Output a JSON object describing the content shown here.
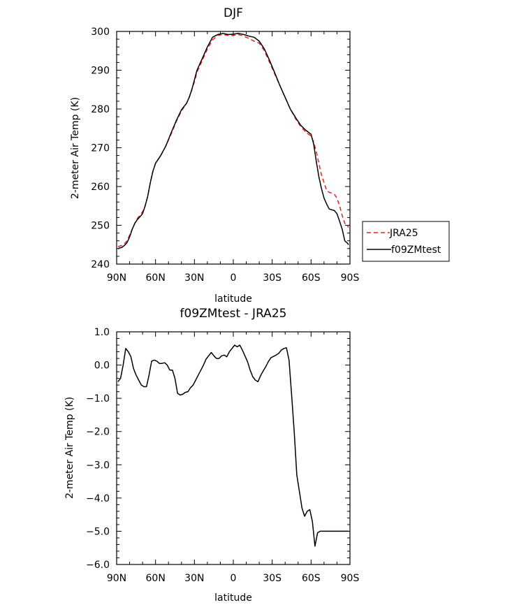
{
  "chart_data": [
    {
      "type": "line",
      "title": "DJF",
      "xlabel": "latitude",
      "ylabel": "2-meter Air Temp (K)",
      "ylim": [
        240,
        300
      ],
      "xlim": [
        90,
        -90
      ],
      "x_ticks": [
        90,
        60,
        30,
        0,
        -30,
        -60,
        -90
      ],
      "x_tick_labels": [
        "90N",
        "60N",
        "30N",
        "0",
        "30S",
        "60S",
        "90S"
      ],
      "y_ticks": [
        240,
        250,
        260,
        270,
        280,
        290,
        300
      ],
      "y_tick_labels": [
        "240",
        "250",
        "260",
        "270",
        "280",
        "290",
        "300"
      ],
      "legend_position": "right",
      "series": [
        {
          "name": "JRA25",
          "color": "#e8211d",
          "dash": "dashed",
          "x": [
            89,
            86,
            84,
            82,
            80,
            78,
            76,
            74,
            72,
            70,
            68,
            66,
            64,
            62,
            60,
            56,
            52,
            48,
            44,
            40,
            36,
            34,
            32,
            30,
            28,
            24,
            20,
            16,
            12,
            8,
            4,
            0,
            -4,
            -8,
            -12,
            -16,
            -20,
            -24,
            -28,
            -32,
            -36,
            -40,
            -44,
            -48,
            -52,
            -56,
            -60,
            -62,
            -64,
            -66,
            -68,
            -70,
            -72,
            -74,
            -76,
            -78,
            -80,
            -82,
            -84,
            -86,
            -88,
            -89
          ],
          "values": [
            244.5,
            244.8,
            245.2,
            246.0,
            247.5,
            249.0,
            250.5,
            251.8,
            252.6,
            253.5,
            255.0,
            257.5,
            261.0,
            264.0,
            266.0,
            268.0,
            270.5,
            273.5,
            276.8,
            279.5,
            281.5,
            283.0,
            285.0,
            287.0,
            289.5,
            292.5,
            295.5,
            297.8,
            299.0,
            299.2,
            299.0,
            299.0,
            299.2,
            298.8,
            298.2,
            297.5,
            297.0,
            295.0,
            292.0,
            289.0,
            286.0,
            283.0,
            280.0,
            277.5,
            275.5,
            274.0,
            273.0,
            271.5,
            269.0,
            266.0,
            263.0,
            261.0,
            259.0,
            258.5,
            258.3,
            258.0,
            257.0,
            255.0,
            252.5,
            250.5,
            249.8,
            249.5
          ]
        },
        {
          "name": "f09ZMtest",
          "color": "#000000",
          "dash": "solid",
          "x": [
            89,
            86,
            84,
            82,
            80,
            78,
            76,
            74,
            72,
            70,
            68,
            66,
            64,
            62,
            60,
            56,
            52,
            48,
            44,
            40,
            36,
            34,
            32,
            30,
            28,
            24,
            20,
            16,
            12,
            8,
            4,
            0,
            -4,
            -8,
            -12,
            -16,
            -20,
            -24,
            -28,
            -32,
            -36,
            -40,
            -44,
            -48,
            -52,
            -56,
            -60,
            -62,
            -64,
            -66,
            -68,
            -70,
            -72,
            -74,
            -76,
            -78,
            -80,
            -82,
            -84,
            -86,
            -88,
            -89
          ],
          "values": [
            244.0,
            244.3,
            244.8,
            245.5,
            247.0,
            249.0,
            250.5,
            251.5,
            252.2,
            253.0,
            255.0,
            257.5,
            261.0,
            264.0,
            266.0,
            268.0,
            270.5,
            273.8,
            277.0,
            279.8,
            281.5,
            283.0,
            285.0,
            287.5,
            290.0,
            293.0,
            296.0,
            298.5,
            299.2,
            299.5,
            299.2,
            299.3,
            299.5,
            299.2,
            298.8,
            298.5,
            297.5,
            295.5,
            292.5,
            289.3,
            286.0,
            283.0,
            280.0,
            277.8,
            275.8,
            274.5,
            273.5,
            271.0,
            266.5,
            262.5,
            259.5,
            257.0,
            255.5,
            254.2,
            254.0,
            253.8,
            253.0,
            251.0,
            249.0,
            246.0,
            245.4,
            245.0
          ]
        }
      ]
    },
    {
      "type": "line",
      "title": "f09ZMtest - JRA25",
      "xlabel": "latitude",
      "ylabel": "2-meter Air Temp (K)",
      "ylim": [
        -6,
        1
      ],
      "xlim": [
        90,
        -90
      ],
      "x_ticks": [
        90,
        60,
        30,
        0,
        -30,
        -60,
        -90
      ],
      "x_tick_labels": [
        "90N",
        "60N",
        "30N",
        "0",
        "30S",
        "60S",
        "90S"
      ],
      "y_ticks": [
        1,
        0,
        -1,
        -2,
        -3,
        -4,
        -5,
        -6
      ],
      "y_tick_labels": [
        "1.0",
        "0.0",
        "-1.0",
        "-2.0",
        "-3.0",
        "-4.0",
        "-5.0",
        "-6.0"
      ],
      "series": [
        {
          "name": "f09ZMtest - JRA25",
          "color": "#000000",
          "dash": "solid",
          "x": [
            89,
            87,
            85,
            83,
            81,
            79,
            77,
            75,
            73,
            71,
            69,
            67,
            65,
            63,
            61,
            59,
            57,
            55,
            53,
            51,
            49,
            47,
            45,
            43,
            41,
            39,
            37,
            35,
            33,
            31,
            29,
            27,
            25,
            23,
            21,
            19,
            17,
            15,
            13,
            11,
            9,
            7,
            5,
            3,
            1,
            -1,
            -3,
            -5,
            -7,
            -9,
            -11,
            -13,
            -15,
            -17,
            -19,
            -21,
            -23,
            -25,
            -27,
            -29,
            -31,
            -33,
            -35,
            -37,
            -39,
            -41,
            -43,
            -45,
            -47,
            -49,
            -51,
            -53,
            -55,
            -57,
            -59,
            -61,
            -63,
            -65,
            -67,
            -69,
            -71,
            -73,
            -75,
            -77,
            -79,
            -81,
            -83,
            -85,
            -87,
            -89
          ],
          "values": [
            -0.5,
            -0.4,
            0.0,
            0.5,
            0.4,
            0.25,
            -0.1,
            -0.3,
            -0.45,
            -0.6,
            -0.65,
            -0.65,
            -0.3,
            0.12,
            0.15,
            0.12,
            0.05,
            0.05,
            0.07,
            0.0,
            -0.15,
            -0.15,
            -0.4,
            -0.85,
            -0.9,
            -0.88,
            -0.82,
            -0.8,
            -0.68,
            -0.6,
            -0.45,
            -0.3,
            -0.15,
            0.0,
            0.18,
            0.28,
            0.38,
            0.28,
            0.2,
            0.2,
            0.28,
            0.3,
            0.25,
            0.4,
            0.5,
            0.6,
            0.55,
            0.6,
            0.45,
            0.28,
            0.1,
            -0.15,
            -0.35,
            -0.45,
            -0.5,
            -0.32,
            -0.18,
            -0.05,
            0.1,
            0.22,
            0.26,
            0.3,
            0.35,
            0.45,
            0.5,
            0.52,
            0.15,
            -0.9,
            -2.0,
            -3.3,
            -3.8,
            -4.3,
            -4.55,
            -4.4,
            -4.35,
            -4.7,
            -5.45,
            -5.05,
            -5.0,
            -5.0,
            -5.0,
            -5.0,
            -5.0,
            -5.0,
            -5.0,
            -5.0,
            -5.0,
            -5.0,
            -5.0,
            -5.0
          ],
          "x_end": -89
        }
      ]
    }
  ]
}
